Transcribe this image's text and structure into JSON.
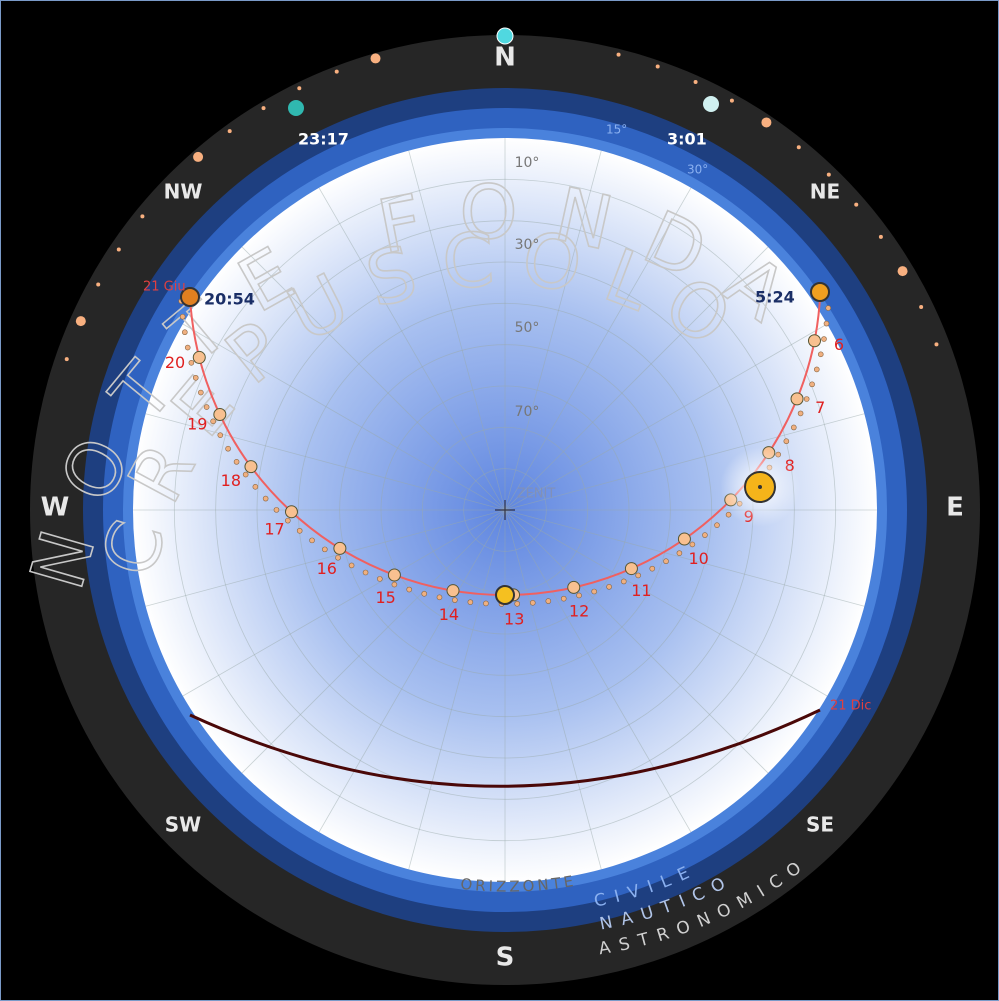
{
  "compass": {
    "n": "N",
    "ne": "NE",
    "e": "E",
    "se": "SE",
    "s": "S",
    "sw": "SW",
    "w": "W",
    "nw": "NW"
  },
  "zones": {
    "night": "NOTTE FONDA",
    "twilight": "CREPUSCOLO",
    "horizon": "ORIZZONTE",
    "civil": "CIVILE",
    "nautical": "NAUTICO",
    "astronomical": "ASTRONOMICO"
  },
  "zenith": "ZENIT",
  "altitude_labels": [
    "10°",
    "30°",
    "50°",
    "70°"
  ],
  "depression_labels": [
    "15°",
    "30°"
  ],
  "times": {
    "sunset": "20:54",
    "sunrise": "5:24",
    "night_left": "23:17",
    "night_right": "3:01"
  },
  "hours": [
    "6",
    "7",
    "8",
    "9",
    "10",
    "11",
    "12",
    "13",
    "14",
    "15",
    "16",
    "17",
    "18",
    "19",
    "20"
  ],
  "dates": {
    "summer": "21 Giu",
    "winter": "21 Dic"
  }
}
